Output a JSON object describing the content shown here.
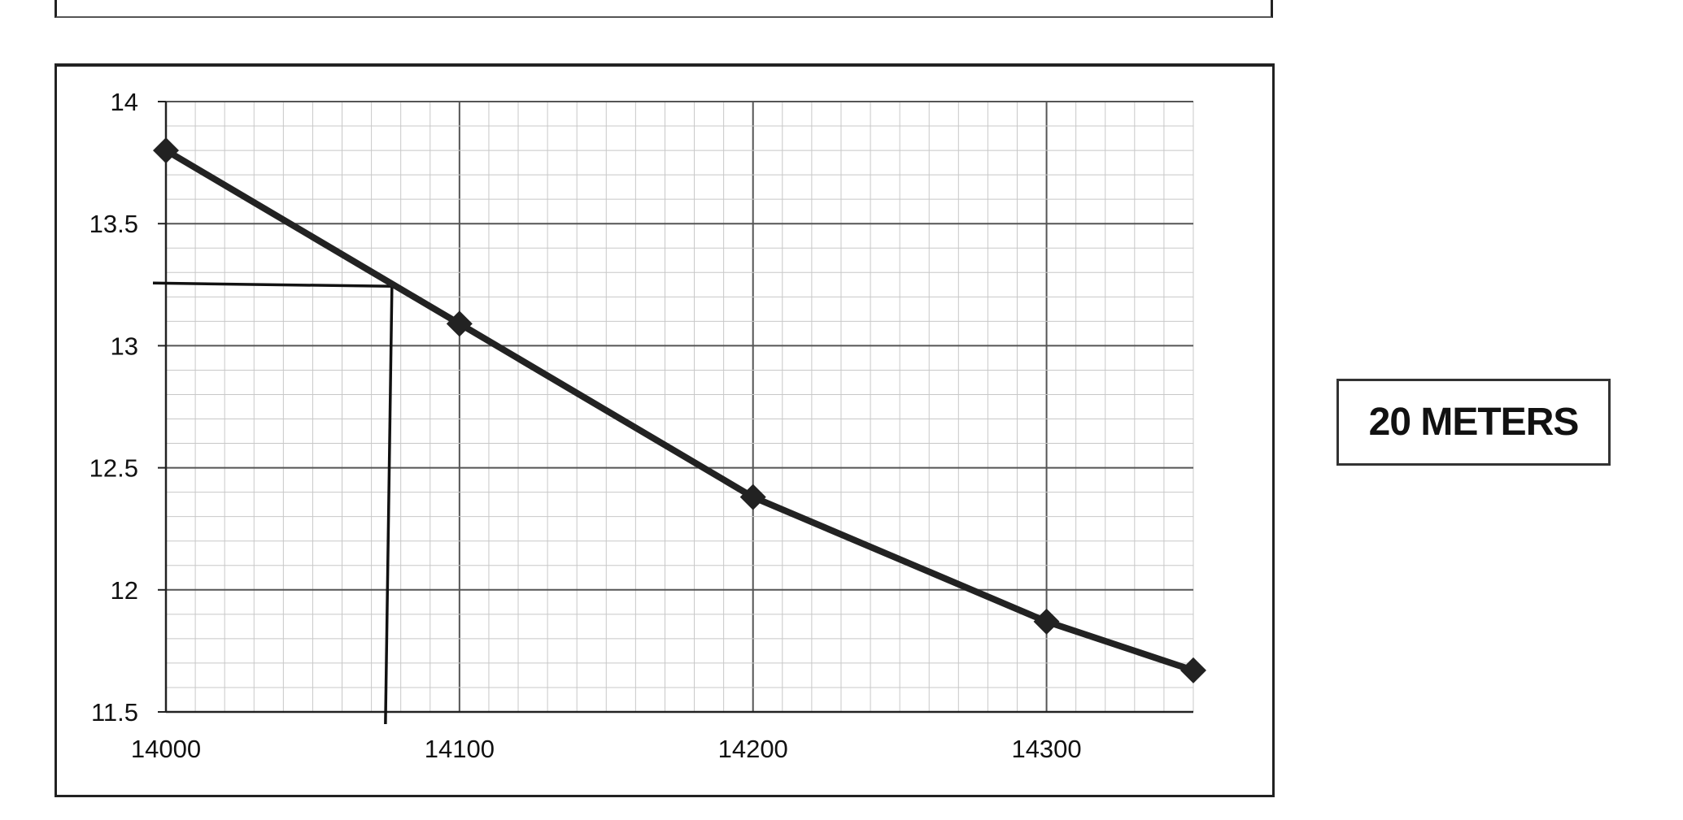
{
  "colors": {
    "series": "#222222",
    "minor_grid": "#c8c8c8",
    "major_grid": "#555555",
    "guide": "#111111"
  },
  "chart_data": {
    "type": "line",
    "x": [
      14000,
      14100,
      14200,
      14300,
      14350
    ],
    "series": [
      {
        "values": [
          13.8,
          13.09,
          12.38,
          11.87,
          11.67
        ],
        "marker": "diamond"
      }
    ],
    "x_ticks": [
      "14000",
      "14100",
      "14200",
      "14300"
    ],
    "y_ticks": [
      "14",
      "13.5",
      "13",
      "12.5",
      "12",
      "11.5"
    ],
    "xlim": [
      14000,
      14350
    ],
    "ylim": [
      11.5,
      14
    ],
    "grid": true,
    "annotation": {
      "kind": "reading-guide",
      "x": 14077,
      "y": 13.25
    },
    "legend_label": "20 METERS"
  }
}
